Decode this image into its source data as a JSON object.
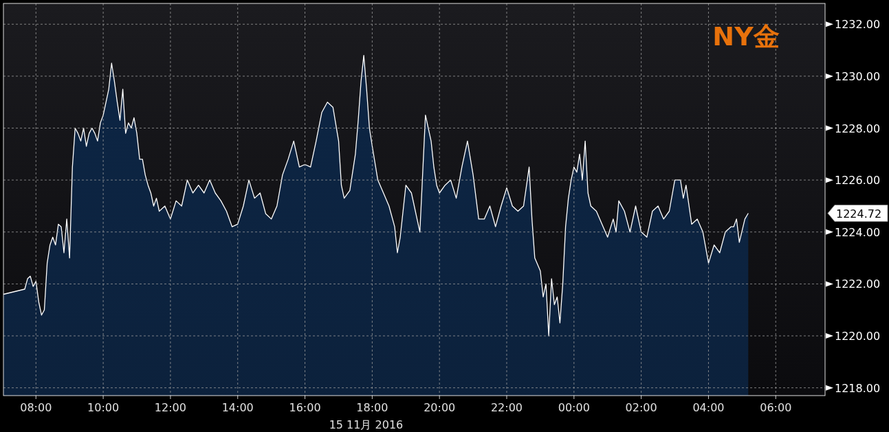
{
  "chart_data": {
    "type": "area",
    "title": "NY金",
    "xlabel": "15 11月 2016",
    "xlim": [
      "2016-11-15T07:02",
      "2016-11-16T07:28"
    ],
    "xticks": [
      {
        "value": "2016-11-15T08:00",
        "label": "08:00"
      },
      {
        "value": "2016-11-15T10:00",
        "label": "10:00"
      },
      {
        "value": "2016-11-15T12:00",
        "label": "12:00"
      },
      {
        "value": "2016-11-15T14:00",
        "label": "14:00"
      },
      {
        "value": "2016-11-15T16:00",
        "label": "16:00"
      },
      {
        "value": "2016-11-15T18:00",
        "label": "18:00"
      },
      {
        "value": "2016-11-15T20:00",
        "label": "20:00"
      },
      {
        "value": "2016-11-15T22:00",
        "label": "22:00"
      },
      {
        "value": "2016-11-16T00:00",
        "label": "00:00"
      },
      {
        "value": "2016-11-16T02:00",
        "label": "02:00"
      },
      {
        "value": "2016-11-16T04:00",
        "label": "04:00"
      },
      {
        "value": "2016-11-16T06:00",
        "label": "06:00"
      }
    ],
    "ylim": [
      1217.7,
      1232.8
    ],
    "yticks": [
      {
        "value": 1218,
        "label": "1218.00"
      },
      {
        "value": 1220,
        "label": "1220.00"
      },
      {
        "value": 1222,
        "label": "1222.00"
      },
      {
        "value": 1224,
        "label": "1224.00"
      },
      {
        "value": 1226,
        "label": "1226.00"
      },
      {
        "value": 1228,
        "label": "1228.00"
      },
      {
        "value": 1230,
        "label": "1230.00"
      },
      {
        "value": 1232,
        "label": "1232.00"
      }
    ],
    "grid": true,
    "annotations": [
      "1224.72"
    ],
    "series": [
      {
        "color": "#0c2544",
        "x": [
          "2016-11-15T07:02",
          "2016-11-15T07:40",
          "2016-11-15T07:45",
          "2016-11-15T07:50",
          "2016-11-15T07:55",
          "2016-11-15T08:00",
          "2016-11-15T08:05",
          "2016-11-15T08:10",
          "2016-11-15T08:15",
          "2016-11-15T08:20",
          "2016-11-15T08:25",
          "2016-11-15T08:30",
          "2016-11-15T08:35",
          "2016-11-15T08:40",
          "2016-11-15T08:45",
          "2016-11-15T08:50",
          "2016-11-15T08:55",
          "2016-11-15T09:00",
          "2016-11-15T09:05",
          "2016-11-15T09:10",
          "2016-11-15T09:15",
          "2016-11-15T09:20",
          "2016-11-15T09:25",
          "2016-11-15T09:30",
          "2016-11-15T09:35",
          "2016-11-15T09:40",
          "2016-11-15T09:45",
          "2016-11-15T09:50",
          "2016-11-15T09:55",
          "2016-11-15T10:00",
          "2016-11-15T10:05",
          "2016-11-15T10:10",
          "2016-11-15T10:15",
          "2016-11-15T10:20",
          "2016-11-15T10:25",
          "2016-11-15T10:30",
          "2016-11-15T10:35",
          "2016-11-15T10:40",
          "2016-11-15T10:45",
          "2016-11-15T10:50",
          "2016-11-15T10:55",
          "2016-11-15T11:00",
          "2016-11-15T11:05",
          "2016-11-15T11:10",
          "2016-11-15T11:15",
          "2016-11-15T11:20",
          "2016-11-15T11:25",
          "2016-11-15T11:30",
          "2016-11-15T11:35",
          "2016-11-15T11:40",
          "2016-11-15T11:50",
          "2016-11-15T12:00",
          "2016-11-15T12:10",
          "2016-11-15T12:20",
          "2016-11-15T12:30",
          "2016-11-15T12:40",
          "2016-11-15T12:50",
          "2016-11-15T13:00",
          "2016-11-15T13:10",
          "2016-11-15T13:20",
          "2016-11-15T13:30",
          "2016-11-15T13:40",
          "2016-11-15T13:50",
          "2016-11-15T14:00",
          "2016-11-15T14:10",
          "2016-11-15T14:20",
          "2016-11-15T14:30",
          "2016-11-15T14:40",
          "2016-11-15T14:50",
          "2016-11-15T15:00",
          "2016-11-15T15:10",
          "2016-11-15T15:20",
          "2016-11-15T15:30",
          "2016-11-15T15:40",
          "2016-11-15T15:50",
          "2016-11-15T16:00",
          "2016-11-15T16:10",
          "2016-11-15T16:20",
          "2016-11-15T16:30",
          "2016-11-15T16:40",
          "2016-11-15T16:50",
          "2016-11-15T17:00",
          "2016-11-15T17:05",
          "2016-11-15T17:10",
          "2016-11-15T17:20",
          "2016-11-15T17:30",
          "2016-11-15T17:35",
          "2016-11-15T17:40",
          "2016-11-15T17:45",
          "2016-11-15T17:50",
          "2016-11-15T17:55",
          "2016-11-15T18:00",
          "2016-11-15T18:10",
          "2016-11-15T18:20",
          "2016-11-15T18:30",
          "2016-11-15T18:40",
          "2016-11-15T18:45",
          "2016-11-15T18:50",
          "2016-11-15T19:00",
          "2016-11-15T19:10",
          "2016-11-15T19:20",
          "2016-11-15T19:25",
          "2016-11-15T19:35",
          "2016-11-15T19:45",
          "2016-11-15T19:50",
          "2016-11-15T19:55",
          "2016-11-15T20:00",
          "2016-11-15T20:10",
          "2016-11-15T20:20",
          "2016-11-15T20:30",
          "2016-11-15T20:40",
          "2016-11-15T20:50",
          "2016-11-15T21:00",
          "2016-11-15T21:10",
          "2016-11-15T21:20",
          "2016-11-15T21:30",
          "2016-11-15T21:40",
          "2016-11-15T21:50",
          "2016-11-15T22:00",
          "2016-11-15T22:10",
          "2016-11-15T22:20",
          "2016-11-15T22:30",
          "2016-11-15T22:40",
          "2016-11-15T22:45",
          "2016-11-15T22:50",
          "2016-11-15T23:00",
          "2016-11-15T23:05",
          "2016-11-15T23:10",
          "2016-11-15T23:15",
          "2016-11-15T23:20",
          "2016-11-15T23:25",
          "2016-11-15T23:30",
          "2016-11-15T23:35",
          "2016-11-15T23:40",
          "2016-11-15T23:45",
          "2016-11-15T23:50",
          "2016-11-15T23:55",
          "2016-11-16T00:00",
          "2016-11-16T00:05",
          "2016-11-16T00:10",
          "2016-11-16T00:15",
          "2016-11-16T00:20",
          "2016-11-16T00:25",
          "2016-11-16T00:30",
          "2016-11-16T00:40",
          "2016-11-16T00:50",
          "2016-11-16T01:00",
          "2016-11-16T01:10",
          "2016-11-16T01:15",
          "2016-11-16T01:20",
          "2016-11-16T01:30",
          "2016-11-16T01:40",
          "2016-11-16T01:50",
          "2016-11-16T02:00",
          "2016-11-16T02:10",
          "2016-11-16T02:20",
          "2016-11-16T02:30",
          "2016-11-16T02:40",
          "2016-11-16T02:50",
          "2016-11-16T03:00",
          "2016-11-16T03:10",
          "2016-11-16T03:15",
          "2016-11-16T03:20",
          "2016-11-16T03:30",
          "2016-11-16T03:40",
          "2016-11-16T03:50",
          "2016-11-16T04:00",
          "2016-11-16T04:10",
          "2016-11-16T04:20",
          "2016-11-16T04:30",
          "2016-11-16T04:40",
          "2016-11-16T04:45",
          "2016-11-16T04:50",
          "2016-11-16T04:55",
          "2016-11-16T05:05",
          "2016-11-16T05:11"
        ],
        "values": [
          1221.6,
          1221.8,
          1222.2,
          1222.3,
          1221.9,
          1222.1,
          1221.3,
          1220.8,
          1221.0,
          1222.8,
          1223.5,
          1223.8,
          1223.5,
          1224.3,
          1224.2,
          1223.2,
          1224.5,
          1223.0,
          1226.5,
          1228.0,
          1227.8,
          1227.5,
          1228.0,
          1227.3,
          1227.8,
          1228.0,
          1227.8,
          1227.5,
          1228.2,
          1228.5,
          1229.0,
          1229.5,
          1230.5,
          1229.8,
          1229.0,
          1228.3,
          1229.5,
          1227.8,
          1228.2,
          1228.0,
          1228.4,
          1227.8,
          1226.8,
          1226.8,
          1226.2,
          1225.8,
          1225.5,
          1225.0,
          1225.3,
          1224.8,
          1225.0,
          1224.5,
          1225.2,
          1225.0,
          1226.0,
          1225.5,
          1225.8,
          1225.5,
          1226.0,
          1225.5,
          1225.2,
          1224.8,
          1224.2,
          1224.3,
          1225.0,
          1226.0,
          1225.3,
          1225.5,
          1224.7,
          1224.5,
          1225.0,
          1226.2,
          1226.8,
          1227.5,
          1226.5,
          1226.6,
          1226.5,
          1227.5,
          1228.6,
          1229.0,
          1228.8,
          1227.5,
          1225.8,
          1225.3,
          1225.6,
          1227.0,
          1228.3,
          1229.8,
          1230.8,
          1229.5,
          1228.0,
          1227.3,
          1226.0,
          1225.5,
          1225.0,
          1224.2,
          1223.2,
          1223.8,
          1225.8,
          1225.5,
          1224.5,
          1224.0,
          1228.5,
          1227.5,
          1226.5,
          1225.8,
          1225.5,
          1225.8,
          1226.0,
          1225.3,
          1226.5,
          1227.5,
          1226.2,
          1224.5,
          1224.5,
          1225.0,
          1224.2,
          1225.0,
          1225.7,
          1225.0,
          1224.8,
          1225.0,
          1226.5,
          1224.5,
          1223.0,
          1222.5,
          1221.5,
          1222.0,
          1220.0,
          1222.2,
          1221.2,
          1221.5,
          1220.5,
          1222.0,
          1224.2,
          1225.3,
          1226.0,
          1226.5,
          1226.3,
          1227.0,
          1226.0,
          1227.5,
          1225.5,
          1225.0,
          1224.8,
          1224.3,
          1223.8,
          1224.5,
          1224.0,
          1225.2,
          1224.8,
          1224.0,
          1225.0,
          1224.0,
          1223.8,
          1224.8,
          1225.0,
          1224.5,
          1224.8,
          1226.0,
          1226.0,
          1225.3,
          1225.8,
          1224.3,
          1224.5,
          1224.0,
          1222.8,
          1223.5,
          1223.2,
          1224.0,
          1224.2,
          1224.2,
          1224.5,
          1223.6,
          1224.5,
          1224.72
        ]
      }
    ]
  }
}
